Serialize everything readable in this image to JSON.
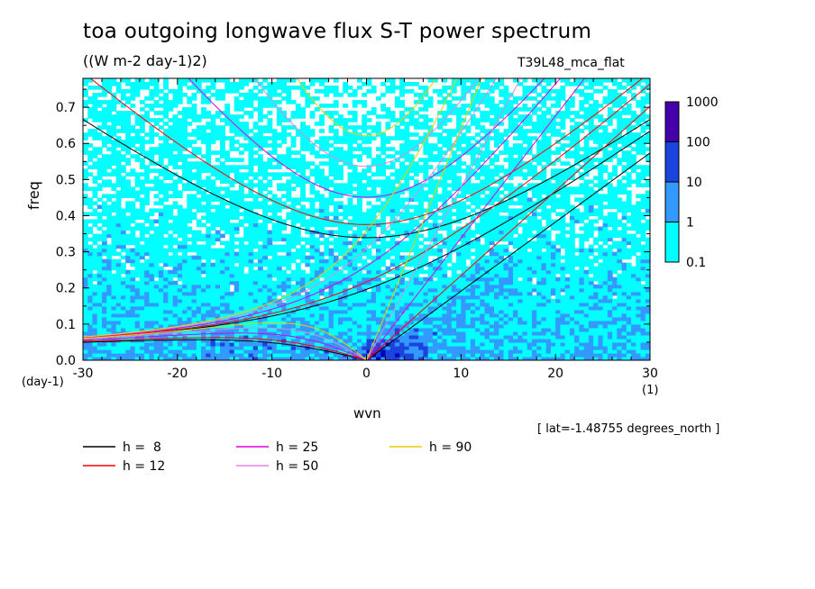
{
  "chart_data": {
    "type": "heatmap",
    "title": "toa outgoing longwave flux S-T power spectrum",
    "subtitle": "((W m-2 day-1)2)",
    "run_label": "T39L48_mca_flat",
    "xlabel": "wvn",
    "ylabel": "freq",
    "x_unit": "(1)",
    "y_unit": "(day-1)",
    "annotation": "[ lat=-1.48755 degrees_north ]",
    "xlim": [
      -30,
      30
    ],
    "ylim": [
      0,
      0.78
    ],
    "x_ticks": [
      -30,
      -20,
      -10,
      0,
      10,
      20,
      30
    ],
    "x_tick_labels": [
      "-30",
      "-20",
      "-10",
      "0",
      "10",
      "20",
      "30"
    ],
    "y_ticks": [
      0.0,
      0.1,
      0.2,
      0.3,
      0.4,
      0.5,
      0.6,
      0.7
    ],
    "y_tick_labels": [
      "0.0",
      "0.1",
      "0.2",
      "0.3",
      "0.4",
      "0.5",
      "0.6",
      "0.7"
    ],
    "colorbar": {
      "levels": [
        "0.1",
        "1",
        "10",
        "100",
        "1000"
      ],
      "colors": [
        "#00ffff",
        "#3399ff",
        "#1a44dd",
        "#0000bb",
        "#4400aa"
      ]
    },
    "dispersion_curves": [
      {
        "name": "h =  8",
        "h": 8,
        "color": "#000000"
      },
      {
        "name": "h = 12",
        "h": 12,
        "color": "#ff0000"
      },
      {
        "name": "h = 25",
        "h": 25,
        "color": "#dd00dd"
      },
      {
        "name": "h = 50",
        "h": 50,
        "color": "#dd88dd"
      },
      {
        "name": "h = 90",
        "h": 90,
        "color": "#eecc00"
      }
    ],
    "grid": false,
    "legend_position": "bottom-left"
  }
}
